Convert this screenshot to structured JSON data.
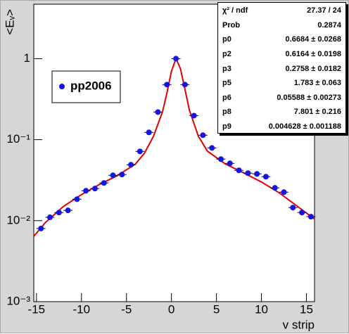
{
  "chart_data": {
    "type": "scatter",
    "log_y": true,
    "x_label": "v strip",
    "y_label": "<Eᵥ>",
    "xlim": [
      -15.3,
      15.9
    ],
    "ylim": [
      0.001,
      4.7
    ],
    "xticks": [
      -15,
      -10,
      -5,
      0,
      5,
      10,
      15
    ],
    "yticks": [
      {
        "value": 0.001,
        "label": "10⁻³"
      },
      {
        "value": 0.01,
        "label": "10⁻²"
      },
      {
        "value": 0.1,
        "label": "10⁻¹"
      },
      1
    ],
    "legend": "upper left",
    "series": [
      {
        "name": "pp2006",
        "color": "#1414e6",
        "x": [
          -14.5,
          -13.5,
          -12.5,
          -11.5,
          -10.5,
          -9.5,
          -8.5,
          -7.5,
          -6.5,
          -5.5,
          -4.5,
          -3.5,
          -2.5,
          -1.5,
          -0.5,
          0.5,
          1.5,
          2.5,
          3.5,
          4.5,
          5.5,
          6.5,
          7.5,
          8.5,
          9.5,
          10.5,
          11.5,
          12.5,
          13.5,
          14.5,
          15.5
        ],
        "values": [
          0.008,
          0.011,
          0.0126,
          0.0134,
          0.0184,
          0.0234,
          0.0249,
          0.0292,
          0.0363,
          0.0371,
          0.049,
          0.0716,
          0.123,
          0.219,
          0.478,
          1.0,
          0.478,
          0.198,
          0.1135,
          0.079,
          0.0575,
          0.051,
          0.0418,
          0.0386,
          0.0378,
          0.0349,
          0.0254,
          0.0225,
          0.0145,
          0.0126,
          0.0112
        ]
      }
    ],
    "fit": {
      "color": "#e00000",
      "x": [
        -15.3,
        -14,
        -12,
        -10,
        -8,
        -6,
        -4,
        -3,
        -2,
        -1,
        -0.5,
        0,
        0.5,
        1,
        1.5,
        2,
        3,
        4,
        6,
        8,
        10,
        12,
        14,
        15.9
      ],
      "values": [
        0.0064,
        0.0095,
        0.015,
        0.021,
        0.028,
        0.036,
        0.05,
        0.068,
        0.11,
        0.22,
        0.38,
        0.7,
        1.0,
        0.75,
        0.42,
        0.23,
        0.11,
        0.072,
        0.05,
        0.039,
        0.03,
        0.022,
        0.015,
        0.0105
      ]
    }
  },
  "stats": {
    "rows": [
      [
        "χ² / ndf",
        "27.37 / 24"
      ],
      [
        "Prob",
        "0.2874"
      ],
      [
        "p0",
        "0.6684 ± 0.0268"
      ],
      [
        "p2",
        "0.6164 ± 0.0198"
      ],
      [
        "p3",
        "0.2758 ± 0.0182"
      ],
      [
        "p5",
        "1.783 ± 0.063"
      ],
      [
        "p6",
        "0.05588 ± 0.00273"
      ],
      [
        "p8",
        "7.801 ± 0.216"
      ],
      [
        "p9",
        "0.004628 ± 0.001188"
      ]
    ]
  }
}
